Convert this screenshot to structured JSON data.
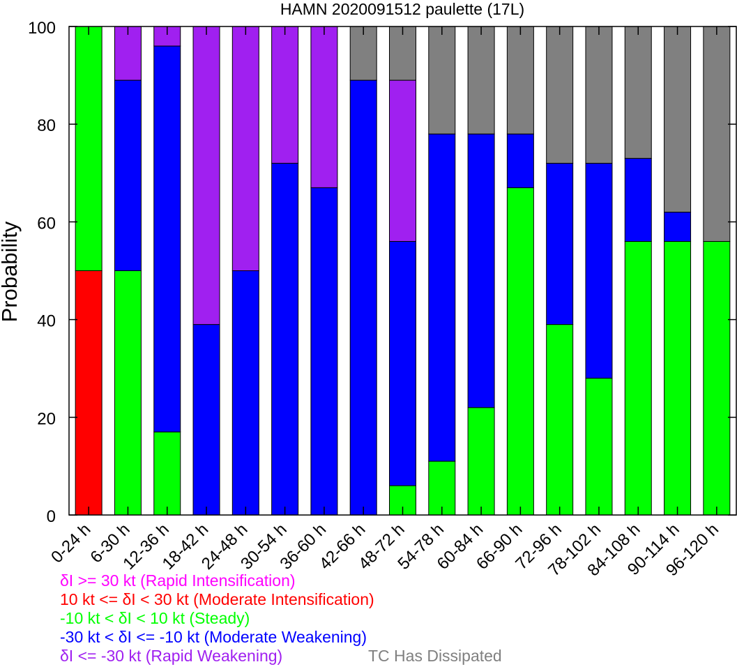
{
  "chart_data": {
    "type": "bar",
    "stacked": true,
    "title": "HAMN 2020091512 paulette (17L)",
    "xlabel": "",
    "ylabel": "Probability",
    "ylim": [
      0,
      100
    ],
    "yticks": [
      0,
      20,
      40,
      60,
      80,
      100
    ],
    "grid": false,
    "categories": [
      "0-24 h",
      "6-30 h",
      "12-36 h",
      "18-42 h",
      "24-48 h",
      "30-54 h",
      "36-60 h",
      "42-66 h",
      "48-72 h",
      "54-78 h",
      "60-84 h",
      "66-90 h",
      "72-96 h",
      "78-102 h",
      "84-108 h",
      "90-114 h",
      "96-120 h"
    ],
    "series": [
      {
        "key": "mod_int",
        "color": "#ff0000",
        "values": [
          50,
          0,
          0,
          0,
          0,
          0,
          0,
          0,
          0,
          0,
          0,
          0,
          0,
          0,
          0,
          0,
          0
        ]
      },
      {
        "key": "steady",
        "color": "#00ff00",
        "values": [
          50,
          50,
          17,
          0,
          0,
          0,
          0,
          0,
          6,
          11,
          22,
          67,
          39,
          28,
          56,
          56,
          56
        ]
      },
      {
        "key": "mod_weak",
        "color": "#0000ff",
        "values": [
          0,
          39,
          79,
          39,
          50,
          72,
          67,
          89,
          50,
          67,
          56,
          11,
          33,
          44,
          17,
          6,
          0
        ]
      },
      {
        "key": "rapid_weak",
        "color": "#a020f0",
        "values": [
          0,
          11,
          4,
          61,
          50,
          28,
          33,
          0,
          33,
          0,
          0,
          0,
          0,
          0,
          0,
          0,
          0
        ]
      },
      {
        "key": "dissipated",
        "color": "#808080",
        "values": [
          0,
          0,
          0,
          0,
          0,
          0,
          0,
          11,
          11,
          22,
          22,
          22,
          28,
          28,
          27,
          38,
          44
        ]
      }
    ],
    "legend": [
      {
        "text": "δI >= 30 kt (Rapid Intensification)",
        "color": "#ff00ff"
      },
      {
        "text": "10 kt <= δI < 30 kt (Moderate Intensification)",
        "color": "#ff0000"
      },
      {
        "text": "-10 kt < δI < 10 kt (Steady)",
        "color": "#00ff00"
      },
      {
        "text": "-30 kt < δI <= -10 kt (Moderate Weakening)",
        "color": "#0000ff"
      },
      {
        "text": "δI <= -30 kt (Rapid Weakening)",
        "color": "#a020f0"
      },
      {
        "text": "TC Has Dissipated",
        "color": "#808080"
      }
    ],
    "legend_position": "bottom"
  }
}
